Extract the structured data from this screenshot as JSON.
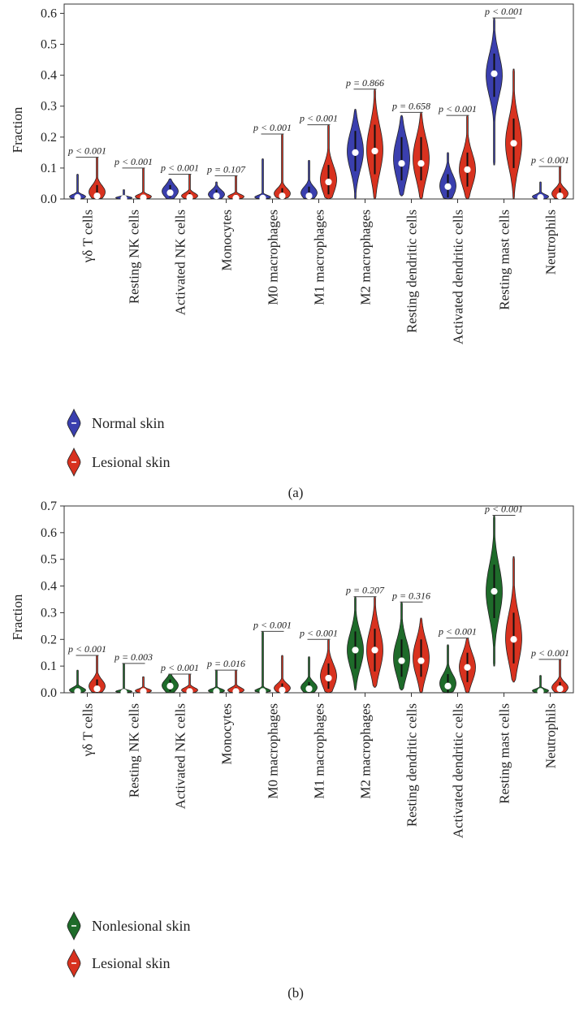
{
  "chart_data": [
    {
      "type": "violin",
      "panel_label": "(a)",
      "ylabel": "Fraction",
      "ylim": [
        0,
        0.63
      ],
      "yticks": [
        "0.0",
        "0.1",
        "0.2",
        "0.3",
        "0.4",
        "0.5",
        "0.6"
      ],
      "categories": [
        "γδ T cells",
        "Resting NK cells",
        "Activated NK cells",
        "Monocytes",
        "M0 macrophages",
        "M1 macrophages",
        "M2 macrophages",
        "Resting dendritic cells",
        "Activated dendritic cells",
        "Resting mast cells",
        "Neutrophils"
      ],
      "p_values": [
        "p < 0.001",
        "p < 0.001",
        "p < 0.001",
        "p = 0.107",
        "p < 0.001",
        "p < 0.001",
        "p = 0.866",
        "p = 0.658",
        "p < 0.001",
        "p < 0.001",
        "p < 0.001"
      ],
      "series": [
        {
          "name": "Normal skin",
          "color": "#3a3fae",
          "medians": [
            0.005,
            0.002,
            0.02,
            0.01,
            0.003,
            0.01,
            0.15,
            0.115,
            0.04,
            0.405,
            0.005
          ],
          "max": [
            0.08,
            0.03,
            0.065,
            0.055,
            0.13,
            0.125,
            0.29,
            0.27,
            0.15,
            0.585,
            0.055
          ],
          "min": [
            0,
            0,
            0,
            0,
            0,
            0,
            0,
            0.01,
            0,
            0.11,
            0
          ],
          "bulk_low": [
            0,
            0,
            0.005,
            0,
            0,
            0,
            0.09,
            0.06,
            0.005,
            0.33,
            0
          ],
          "bulk_high": [
            0.015,
            0.008,
            0.045,
            0.03,
            0.012,
            0.04,
            0.22,
            0.2,
            0.08,
            0.47,
            0.015
          ]
        },
        {
          "name": "Lesional skin",
          "color": "#d8321f",
          "medians": [
            0.01,
            0.004,
            0.005,
            0.003,
            0.01,
            0.055,
            0.155,
            0.115,
            0.095,
            0.18,
            0.01
          ],
          "max": [
            0.135,
            0.1,
            0.08,
            0.075,
            0.21,
            0.24,
            0.355,
            0.28,
            0.27,
            0.42,
            0.105
          ],
          "min": [
            0,
            0,
            0,
            0,
            0,
            0,
            0,
            0,
            0,
            0,
            0
          ],
          "bulk_low": [
            0,
            0,
            0,
            0,
            0,
            0.015,
            0.08,
            0.06,
            0.04,
            0.1,
            0
          ],
          "bulk_high": [
            0.045,
            0.015,
            0.02,
            0.015,
            0.035,
            0.11,
            0.24,
            0.2,
            0.15,
            0.26,
            0.035
          ]
        }
      ]
    },
    {
      "type": "violin",
      "panel_label": "(b)",
      "ylabel": "Fraction",
      "ylim": [
        0,
        0.7
      ],
      "yticks": [
        "0.0",
        "0.1",
        "0.2",
        "0.3",
        "0.4",
        "0.5",
        "0.6",
        "0.7"
      ],
      "categories": [
        "γδ T cells",
        "Resting NK cells",
        "Activated NK cells",
        "Monocytes",
        "M0 macrophages",
        "M1 macrophages",
        "M2 macrophages",
        "Resting dendritic cells",
        "Activated dendritic cells",
        "Resting mast cells",
        "Neutrophils"
      ],
      "p_values": [
        "p < 0.001",
        "p = 0.003",
        "p < 0.001",
        "p = 0.016",
        "p < 0.001",
        "p < 0.001",
        "p = 0.207",
        "p = 0.316",
        "p < 0.001",
        "p < 0.001",
        "p < 0.001"
      ],
      "series": [
        {
          "name": "Nonlesional skin",
          "color": "#1e6b2a",
          "medians": [
            0.005,
            0.002,
            0.025,
            0.005,
            0.005,
            0.015,
            0.16,
            0.12,
            0.025,
            0.38,
            0.005
          ],
          "max": [
            0.085,
            0.11,
            0.07,
            0.085,
            0.23,
            0.135,
            0.36,
            0.34,
            0.18,
            0.665,
            0.065
          ],
          "min": [
            0,
            0,
            0,
            0,
            0,
            0,
            0.01,
            0.01,
            0,
            0.1,
            0
          ],
          "bulk_low": [
            0,
            0,
            0.005,
            0,
            0,
            0,
            0.09,
            0.06,
            0,
            0.28,
            0
          ],
          "bulk_high": [
            0.02,
            0.01,
            0.05,
            0.015,
            0.015,
            0.04,
            0.23,
            0.2,
            0.07,
            0.48,
            0.015
          ]
        },
        {
          "name": "Lesional skin",
          "color": "#d8321f",
          "medians": [
            0.015,
            0.005,
            0.005,
            0.005,
            0.01,
            0.055,
            0.16,
            0.12,
            0.095,
            0.2,
            0.015
          ],
          "max": [
            0.14,
            0.06,
            0.07,
            0.085,
            0.14,
            0.2,
            0.36,
            0.28,
            0.205,
            0.51,
            0.125
          ],
          "min": [
            0,
            0,
            0,
            0,
            0,
            0,
            0.02,
            0,
            0,
            0.04,
            0
          ],
          "bulk_low": [
            0,
            0,
            0,
            0,
            0,
            0.015,
            0.08,
            0.06,
            0.04,
            0.11,
            0
          ],
          "bulk_high": [
            0.05,
            0.015,
            0.02,
            0.02,
            0.035,
            0.11,
            0.24,
            0.2,
            0.15,
            0.3,
            0.04
          ]
        }
      ]
    }
  ]
}
